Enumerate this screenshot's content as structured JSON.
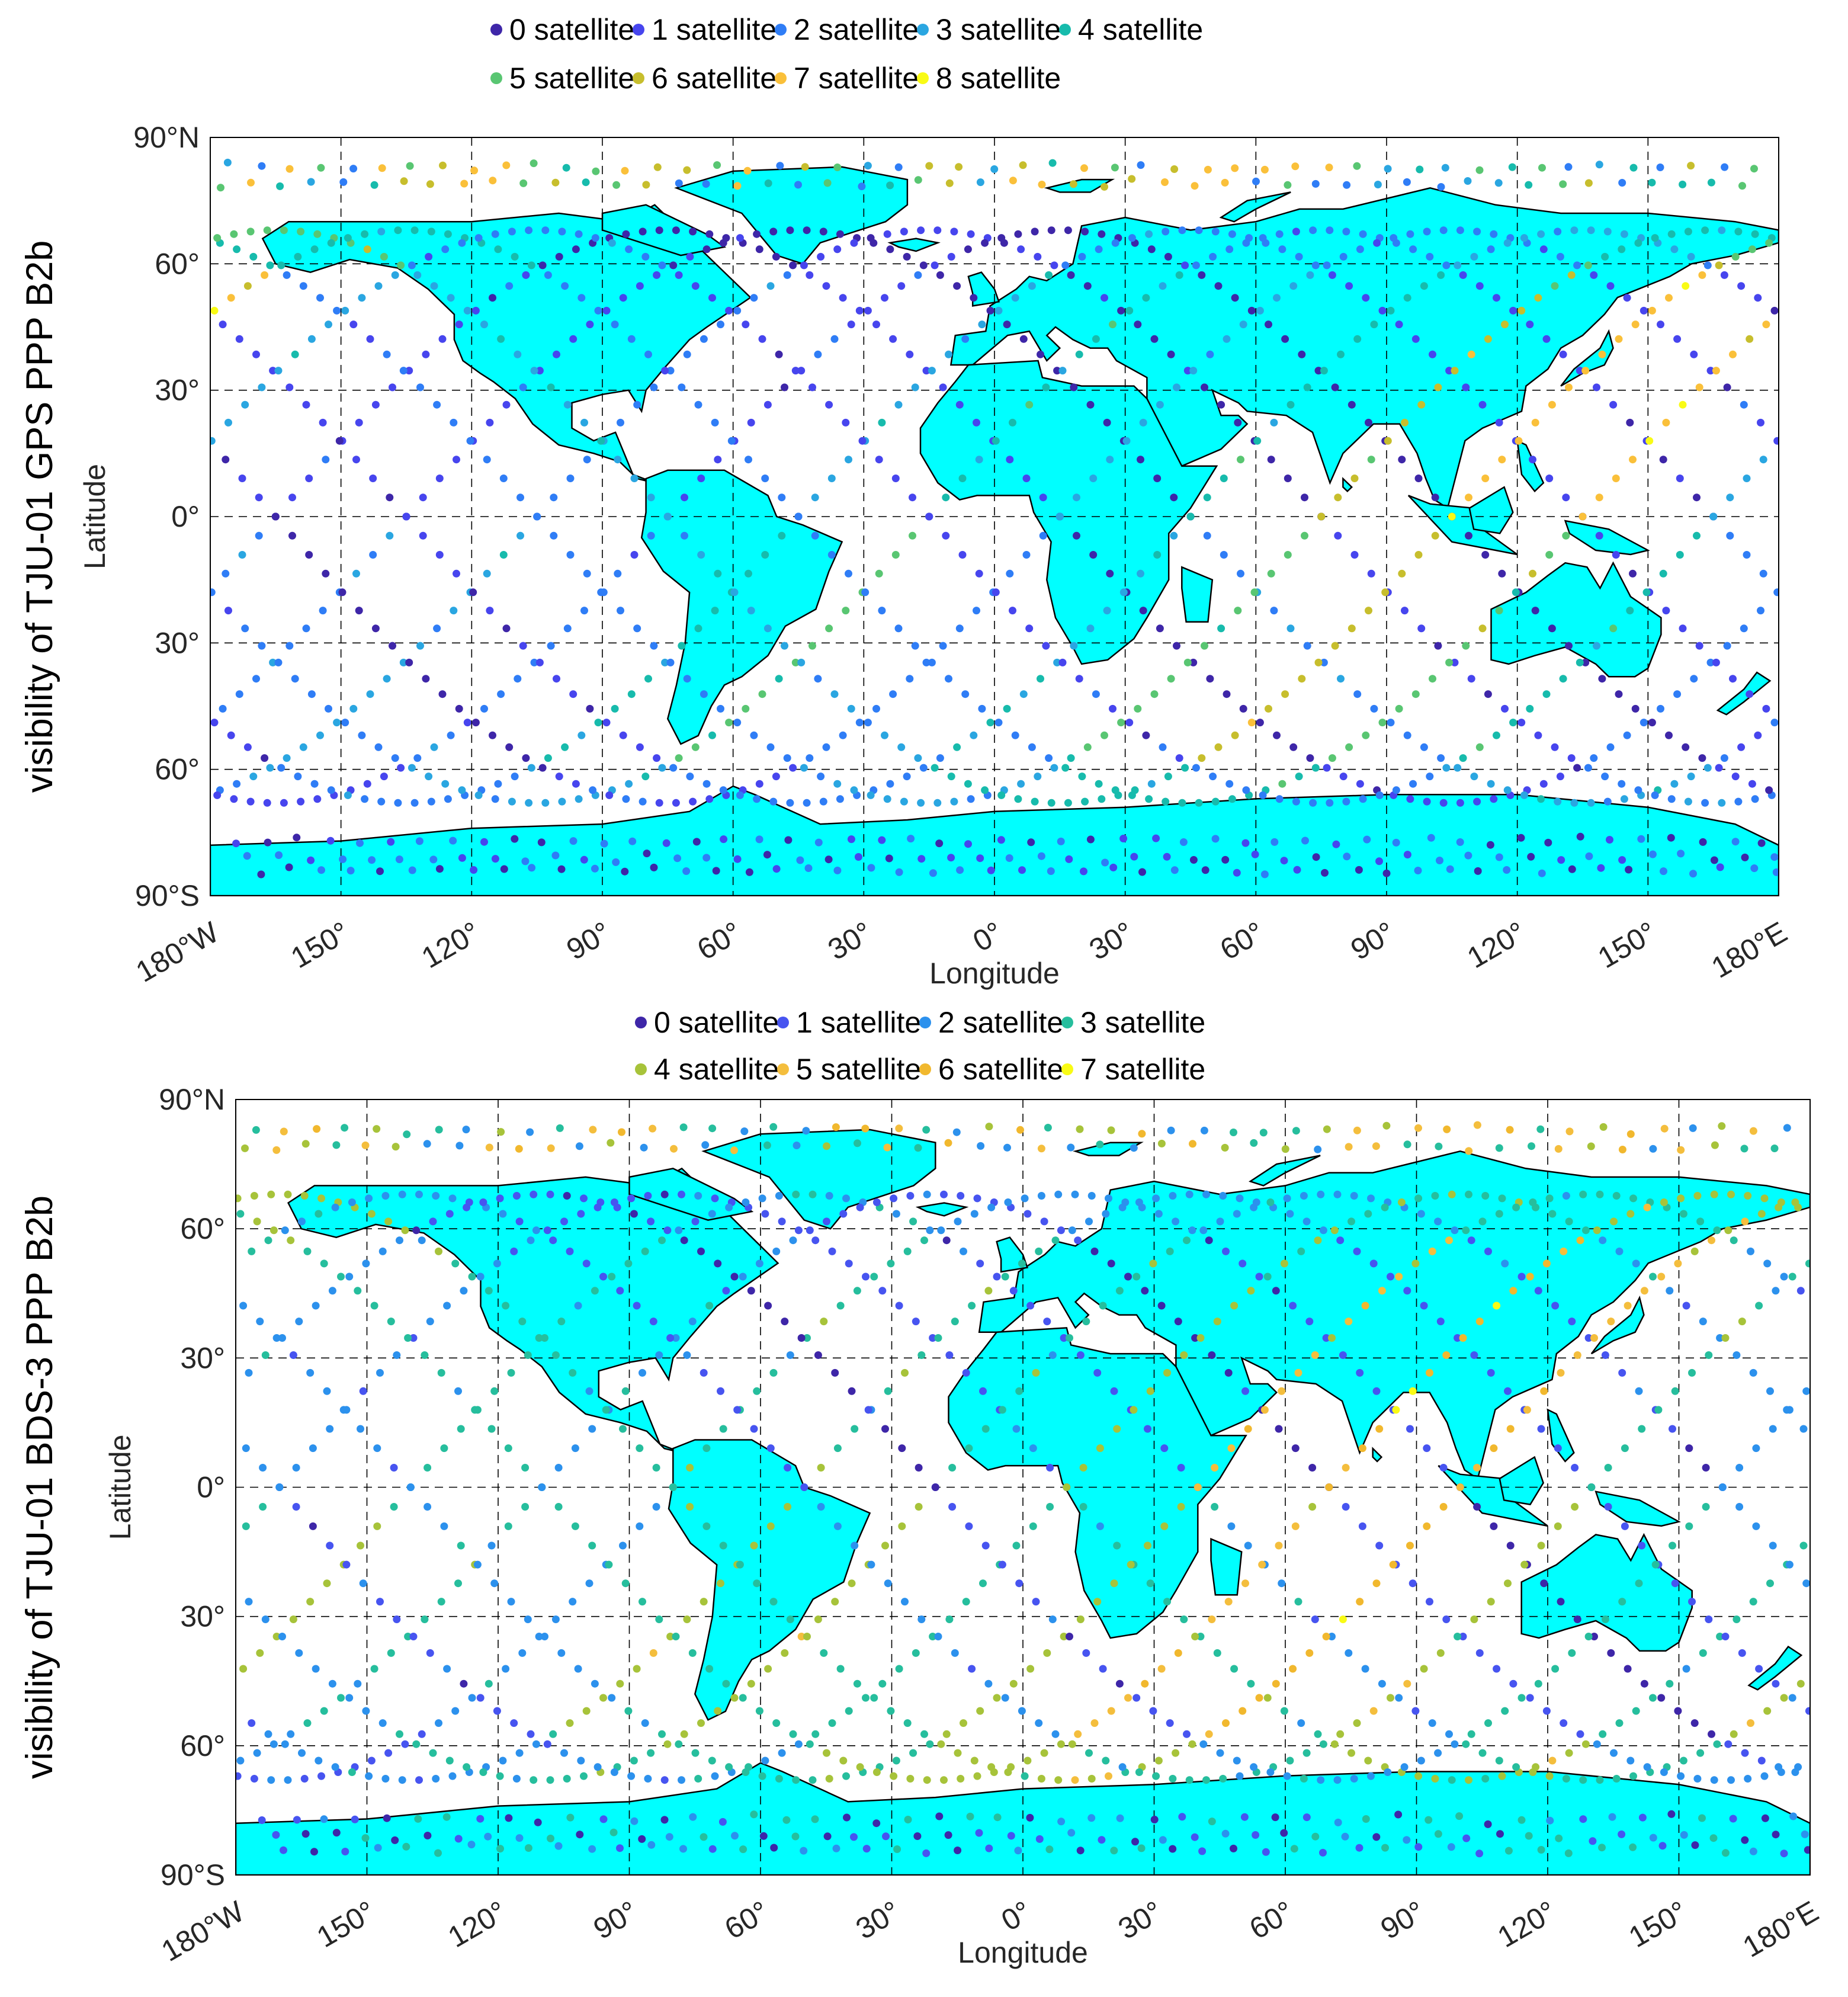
{
  "colors": {
    "land": "#00FFFF",
    "coast": "#000000",
    "grid": "#000000",
    "background": "#FFFFFF"
  },
  "chart_data": [
    {
      "type": "scatter",
      "title": "",
      "ylabel_outer": "visibility of TJU-01 GPS PPP B2b",
      "xlabel": "Longitude",
      "ylabel": "Latitude",
      "xlim": [
        -180,
        180
      ],
      "ylim": [
        -90,
        90
      ],
      "x_ticks": [
        -180,
        -150,
        -120,
        -90,
        -60,
        -30,
        0,
        30,
        60,
        90,
        120,
        150,
        180
      ],
      "x_tick_labels": [
        "180°W",
        "150°",
        "120°",
        "90°",
        "60°",
        "30°",
        "0°",
        "30°",
        "60°",
        "90°",
        "120°",
        "150°",
        "180°E"
      ],
      "y_ticks": [
        90,
        60,
        30,
        0,
        -30,
        -60,
        -90
      ],
      "y_tick_labels": [
        "90°N",
        "60°",
        "30°",
        "0°",
        "30°",
        "60°",
        "90°S"
      ],
      "grid": "dashed",
      "legend_position": "top",
      "legend": [
        {
          "label": "0 satellite",
          "color": "#3E26A8"
        },
        {
          "label": "1 satellite",
          "color": "#4745EE"
        },
        {
          "label": "2 satellite",
          "color": "#2F7DF6"
        },
        {
          "label": "3 satellite",
          "color": "#2AA6E1"
        },
        {
          "label": "4 satellite",
          "color": "#17BBAC"
        },
        {
          "label": "5 satellite",
          "color": "#59C672"
        },
        {
          "label": "6 satellite",
          "color": "#C7BE2D"
        },
        {
          "label": "7 satellite",
          "color": "#FAC03A"
        },
        {
          "label": "8 satellite",
          "color": "#F9FB15"
        }
      ],
      "tracks": [
        {
          "asc_lon": -165,
          "seq": [
            0,
            1,
            2,
            1,
            0,
            1
          ]
        },
        {
          "asc_lon": -135,
          "seq": [
            2,
            3,
            2,
            1,
            0,
            0
          ]
        },
        {
          "asc_lon": -105,
          "seq": [
            1,
            2,
            3,
            2,
            1,
            0
          ]
        },
        {
          "asc_lon": -75,
          "seq": [
            0,
            1,
            2,
            1,
            0,
            0
          ]
        },
        {
          "asc_lon": -45,
          "seq": [
            1,
            2,
            4,
            3,
            2,
            1
          ]
        },
        {
          "asc_lon": -15,
          "seq": [
            2,
            3,
            5,
            4,
            2,
            1
          ]
        },
        {
          "asc_lon": 15,
          "seq": [
            0,
            1,
            2,
            3,
            2,
            1
          ]
        },
        {
          "asc_lon": 45,
          "seq": [
            1,
            2,
            3,
            4,
            3,
            1
          ]
        },
        {
          "asc_lon": 75,
          "seq": [
            2,
            3,
            5,
            6,
            4,
            2
          ]
        },
        {
          "asc_lon": 105,
          "seq": [
            3,
            4,
            6,
            7,
            5,
            3
          ]
        },
        {
          "asc_lon": 135,
          "seq": [
            2,
            4,
            5,
            7,
            4,
            2
          ]
        },
        {
          "asc_lon": 165,
          "seq": [
            1,
            2,
            4,
            3,
            2,
            1
          ]
        }
      ],
      "polar_levels": {
        "north": [
          2,
          3,
          4,
          5,
          6,
          7
        ],
        "south": [
          0,
          1,
          2
        ]
      }
    },
    {
      "type": "scatter",
      "title": "",
      "ylabel_outer": "visibility of TJU-01 BDS-3 PPP B2b",
      "xlabel": "Longitude",
      "ylabel": "Latitude",
      "xlim": [
        -180,
        180
      ],
      "ylim": [
        -90,
        90
      ],
      "x_ticks": [
        -180,
        -150,
        -120,
        -90,
        -60,
        -30,
        0,
        30,
        60,
        90,
        120,
        150,
        180
      ],
      "x_tick_labels": [
        "180°W",
        "150°",
        "120°",
        "90°",
        "60°",
        "30°",
        "0°",
        "30°",
        "60°",
        "90°",
        "120°",
        "150°",
        "180°E"
      ],
      "y_ticks": [
        90,
        60,
        30,
        0,
        -30,
        -60,
        -90
      ],
      "y_tick_labels": [
        "90°N",
        "60°",
        "30°",
        "0°",
        "30°",
        "60°",
        "90°S"
      ],
      "grid": "dashed",
      "legend_position": "top",
      "legend": [
        {
          "label": "0 satellite",
          "color": "#3E26A8"
        },
        {
          "label": "1 satellite",
          "color": "#4754F0"
        },
        {
          "label": "2 satellite",
          "color": "#2C91ED"
        },
        {
          "label": "3 satellite",
          "color": "#26BE9D"
        },
        {
          "label": "4 satellite",
          "color": "#A7C33A"
        },
        {
          "label": "5 satellite",
          "color": "#F4BE3D"
        },
        {
          "label": "6 satellite",
          "color": "#F1B82E"
        },
        {
          "label": "7 satellite",
          "color": "#F9FB15"
        }
      ],
      "tracks": [
        {
          "asc_lon": -170,
          "seq": [
            3,
            4,
            3,
            2,
            1,
            1
          ]
        },
        {
          "asc_lon": -140,
          "seq": [
            2,
            3,
            4,
            3,
            2,
            1
          ]
        },
        {
          "asc_lon": -110,
          "seq": [
            1,
            2,
            3,
            2,
            1,
            0
          ]
        },
        {
          "asc_lon": -80,
          "seq": [
            0,
            1,
            2,
            3,
            2,
            1
          ]
        },
        {
          "asc_lon": -50,
          "seq": [
            1,
            2,
            4,
            3,
            2,
            1
          ]
        },
        {
          "asc_lon": -20,
          "seq": [
            2,
            3,
            4,
            3,
            2,
            1
          ]
        },
        {
          "asc_lon": 10,
          "seq": [
            1,
            2,
            3,
            4,
            3,
            2
          ]
        },
        {
          "asc_lon": 40,
          "seq": [
            2,
            3,
            4,
            5,
            3,
            2
          ]
        },
        {
          "asc_lon": 70,
          "seq": [
            3,
            4,
            5,
            6,
            4,
            3
          ]
        },
        {
          "asc_lon": 100,
          "seq": [
            3,
            4,
            6,
            5,
            4,
            3
          ]
        },
        {
          "asc_lon": 130,
          "seq": [
            2,
            3,
            4,
            3,
            2,
            1
          ]
        },
        {
          "asc_lon": 160,
          "seq": [
            1,
            2,
            3,
            2,
            1,
            0
          ]
        }
      ],
      "polar_levels": {
        "north": [
          2,
          3,
          4,
          5,
          6
        ],
        "south": [
          0,
          1,
          2,
          3
        ]
      }
    }
  ]
}
